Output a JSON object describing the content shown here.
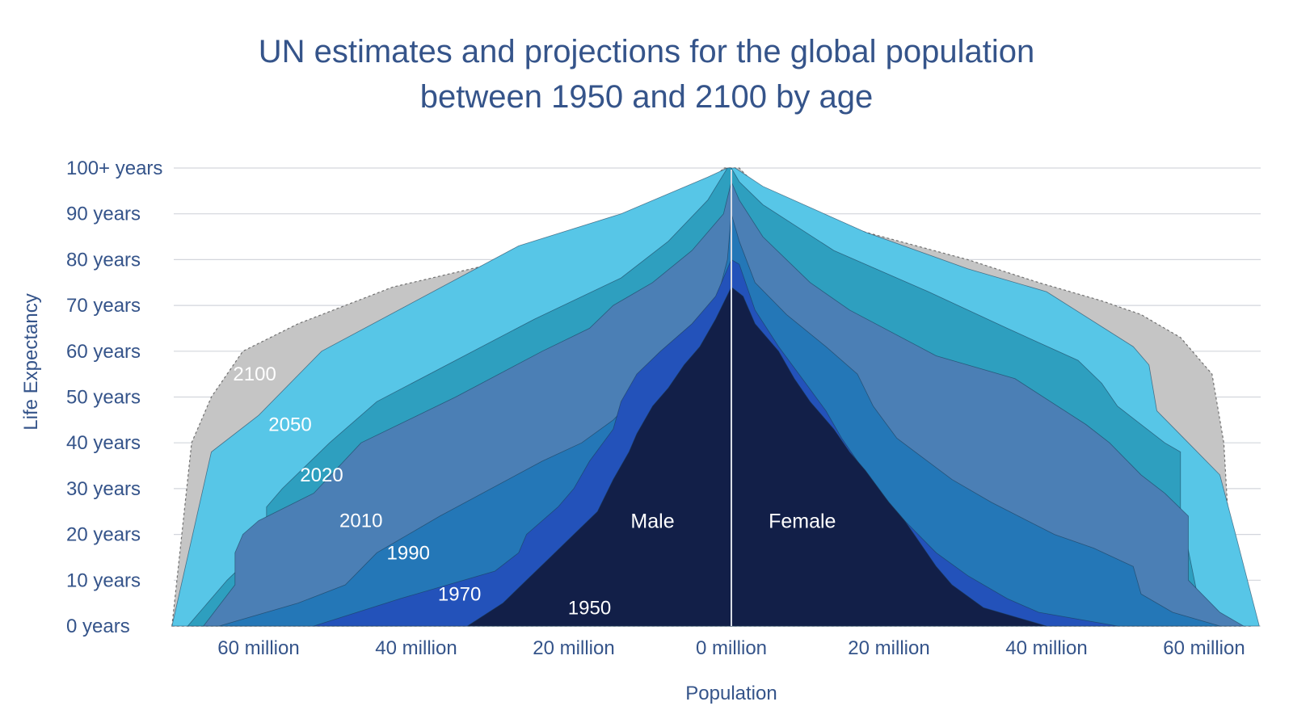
{
  "chart_data": {
    "type": "area",
    "title_lines": [
      "UN estimates and projections for the global population",
      "between 1950 and 2100 by age"
    ],
    "xlabel": "Population",
    "ylabel": "Life Expectancy",
    "side_labels": {
      "left": "Male",
      "right": "Female"
    },
    "x_unit": "million",
    "x_range": [
      -70,
      67
    ],
    "y_range": [
      0,
      100
    ],
    "grid": "horizontal",
    "x_ticks": [
      {
        "value": -60,
        "label": "60 million"
      },
      {
        "value": -40,
        "label": "40 million"
      },
      {
        "value": -20,
        "label": "20 million"
      },
      {
        "value": 0,
        "label": "0 million"
      },
      {
        "value": 20,
        "label": "20 million"
      },
      {
        "value": 40,
        "label": "40 million"
      },
      {
        "value": 60,
        "label": "60 million"
      }
    ],
    "y_ticks": [
      {
        "value": 0,
        "label": "0 years"
      },
      {
        "value": 10,
        "label": "10 years"
      },
      {
        "value": 20,
        "label": "20 years"
      },
      {
        "value": 30,
        "label": "30 years"
      },
      {
        "value": 40,
        "label": "40 years"
      },
      {
        "value": 50,
        "label": "50 years"
      },
      {
        "value": 60,
        "label": "60 years"
      },
      {
        "value": 70,
        "label": "70 years"
      },
      {
        "value": 80,
        "label": "80 years"
      },
      {
        "value": 90,
        "label": "90 years"
      },
      {
        "value": 100,
        "label": "100+ years"
      }
    ],
    "series": [
      {
        "name": "2100",
        "color": "#c5c5c5",
        "label_at": [
          -60.5,
          55
        ],
        "points": [
          [
            -71,
            0
          ],
          [
            -68.5,
            40
          ],
          [
            -66,
            50
          ],
          [
            -62,
            60
          ],
          [
            -55,
            66
          ],
          [
            -43,
            74
          ],
          [
            -28,
            80
          ],
          [
            -17,
            84
          ],
          [
            -6,
            90
          ],
          [
            -1,
            100
          ],
          [
            0,
            100
          ],
          [
            1,
            100
          ],
          [
            6,
            91
          ],
          [
            17,
            86
          ],
          [
            30,
            80
          ],
          [
            39,
            75
          ],
          [
            47,
            71
          ],
          [
            52,
            68
          ],
          [
            57,
            63
          ],
          [
            61,
            55
          ],
          [
            62.5,
            40
          ],
          [
            63,
            25
          ],
          [
            66,
            0
          ]
        ]
      },
      {
        "name": "2050",
        "color": "#57c6e7",
        "label_at": [
          -56,
          44
        ],
        "points": [
          [
            -71,
            0
          ],
          [
            -66,
            38
          ],
          [
            -60,
            46
          ],
          [
            -52,
            60
          ],
          [
            -27,
            83
          ],
          [
            -14,
            90
          ],
          [
            -3,
            98
          ],
          [
            -0.5,
            100
          ],
          [
            0,
            100
          ],
          [
            0.5,
            100
          ],
          [
            4,
            96
          ],
          [
            17,
            86
          ],
          [
            30,
            78
          ],
          [
            40,
            73
          ],
          [
            51,
            61
          ],
          [
            53,
            57
          ],
          [
            54,
            47
          ],
          [
            58,
            40
          ],
          [
            62,
            33
          ],
          [
            64,
            20
          ],
          [
            67,
            0
          ]
        ]
      },
      {
        "name": "2020",
        "color": "#2e9fbf",
        "label_at": [
          -52,
          33
        ],
        "points": [
          [
            -69,
            0
          ],
          [
            -64,
            10
          ],
          [
            -61,
            15
          ],
          [
            -59,
            22
          ],
          [
            -59,
            26
          ],
          [
            -57,
            30
          ],
          [
            -51,
            40
          ],
          [
            -45,
            49
          ],
          [
            -25,
            67
          ],
          [
            -14,
            76
          ],
          [
            -8,
            84
          ],
          [
            -3,
            93
          ],
          [
            -0.5,
            100
          ],
          [
            0,
            100
          ],
          [
            1,
            97
          ],
          [
            4,
            92
          ],
          [
            13,
            82
          ],
          [
            25,
            73
          ],
          [
            35,
            65
          ],
          [
            44,
            58
          ],
          [
            47,
            53
          ],
          [
            49,
            48
          ],
          [
            55,
            40
          ],
          [
            57,
            38
          ],
          [
            57,
            25
          ],
          [
            59,
            8
          ],
          [
            63,
            0
          ]
        ]
      },
      {
        "name": "2010",
        "color": "#4b7fb5",
        "label_at": [
          -47,
          23
        ],
        "points": [
          [
            -67,
            0
          ],
          [
            -63,
            9
          ],
          [
            -63,
            16
          ],
          [
            -62,
            20
          ],
          [
            -60,
            23
          ],
          [
            -53,
            29
          ],
          [
            -47,
            40
          ],
          [
            -35,
            50
          ],
          [
            -24,
            60
          ],
          [
            -18,
            65
          ],
          [
            -15,
            70
          ],
          [
            -10,
            75
          ],
          [
            -5,
            82
          ],
          [
            -1,
            90
          ],
          [
            0,
            97
          ],
          [
            1,
            93
          ],
          [
            4,
            85
          ],
          [
            10,
            75
          ],
          [
            15,
            69
          ],
          [
            26,
            59
          ],
          [
            36,
            54
          ],
          [
            45,
            44
          ],
          [
            48,
            40
          ],
          [
            52,
            33
          ],
          [
            55,
            29
          ],
          [
            58,
            24
          ],
          [
            58,
            17
          ],
          [
            58,
            10
          ],
          [
            62,
            3
          ],
          [
            65,
            0
          ]
        ]
      },
      {
        "name": "1990",
        "color": "#2477b7",
        "label_at": [
          -41,
          16
        ],
        "points": [
          [
            -65,
            0
          ],
          [
            -55,
            5
          ],
          [
            -49,
            9
          ],
          [
            -45,
            16
          ],
          [
            -37,
            24
          ],
          [
            -24,
            36
          ],
          [
            -19,
            40
          ],
          [
            -15,
            45
          ],
          [
            -11,
            52
          ],
          [
            -7,
            58
          ],
          [
            -4,
            64
          ],
          [
            -2,
            70
          ],
          [
            -0.5,
            80
          ],
          [
            0,
            90
          ],
          [
            1,
            84
          ],
          [
            3,
            75
          ],
          [
            7,
            68
          ],
          [
            12,
            61
          ],
          [
            16,
            55
          ],
          [
            18,
            48
          ],
          [
            21,
            41
          ],
          [
            28,
            32
          ],
          [
            33,
            27
          ],
          [
            41,
            20
          ],
          [
            46,
            17
          ],
          [
            51,
            13
          ],
          [
            52,
            7
          ],
          [
            56,
            3
          ],
          [
            62,
            0
          ]
        ]
      },
      {
        "name": "1970",
        "color": "#2352ba",
        "label_at": [
          -34.5,
          7
        ],
        "points": [
          [
            -53,
            0
          ],
          [
            -42,
            6
          ],
          [
            -30,
            12
          ],
          [
            -27,
            16
          ],
          [
            -26,
            20
          ],
          [
            -22,
            26
          ],
          [
            -20,
            30
          ],
          [
            -18,
            36
          ],
          [
            -15,
            43
          ],
          [
            -14,
            49
          ],
          [
            -12,
            55
          ],
          [
            -9,
            60
          ],
          [
            -5,
            66
          ],
          [
            -2,
            72
          ],
          [
            0,
            80
          ],
          [
            1,
            79
          ],
          [
            3,
            69
          ],
          [
            6,
            61
          ],
          [
            9,
            54
          ],
          [
            12,
            47
          ],
          [
            14,
            41
          ],
          [
            16,
            36
          ],
          [
            18,
            31
          ],
          [
            22,
            23
          ],
          [
            26,
            16
          ],
          [
            30,
            11
          ],
          [
            35,
            6
          ],
          [
            39,
            3
          ],
          [
            49,
            0
          ]
        ]
      },
      {
        "name": "1950",
        "color": "#121f48",
        "label_at": [
          -18,
          4
        ],
        "points": [
          [
            -33.5,
            0
          ],
          [
            -29,
            5
          ],
          [
            -26,
            10
          ],
          [
            -23,
            15
          ],
          [
            -20,
            20
          ],
          [
            -17,
            25
          ],
          [
            -15,
            32
          ],
          [
            -13,
            38
          ],
          [
            -12,
            42
          ],
          [
            -10,
            48
          ],
          [
            -8,
            52
          ],
          [
            -6,
            57
          ],
          [
            -4,
            61
          ],
          [
            -2,
            67
          ],
          [
            0,
            74
          ],
          [
            1.5,
            72
          ],
          [
            3,
            66
          ],
          [
            6,
            60
          ],
          [
            8,
            54
          ],
          [
            10,
            49
          ],
          [
            13,
            43
          ],
          [
            15,
            38
          ],
          [
            17,
            34
          ],
          [
            20,
            27
          ],
          [
            22,
            23
          ],
          [
            24,
            18
          ],
          [
            26,
            13
          ],
          [
            28,
            9
          ],
          [
            32,
            4
          ],
          [
            40,
            0
          ]
        ]
      }
    ]
  }
}
